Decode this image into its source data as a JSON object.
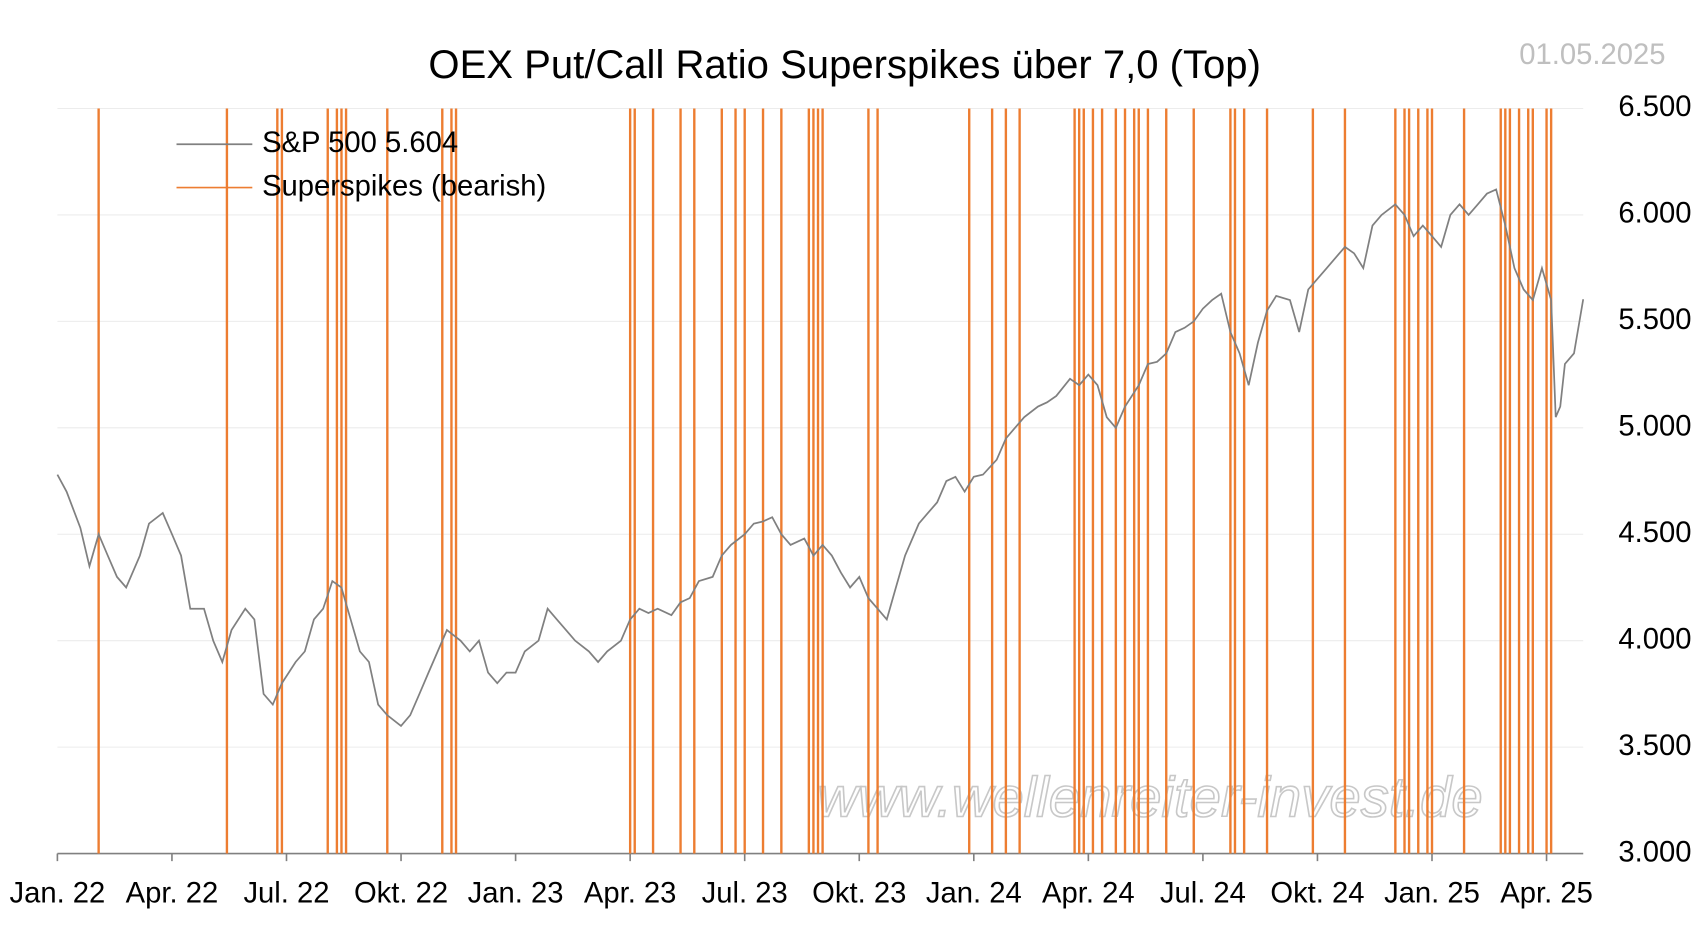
{
  "chart_data": {
    "type": "line",
    "title": "OEX Put/Call Ratio Superspikes über 7,0 (Top)",
    "date": "01.05.2025",
    "watermark": "www.wellenreiter-invest.de",
    "legend": "top-left",
    "grid": true,
    "xlim": [
      2022,
      2025.33
    ],
    "ylim": [
      3000,
      6500
    ],
    "xticks": [
      {
        "value": 2022,
        "label": "Jan. 22"
      },
      {
        "value": 2022.25,
        "label": "Apr. 22"
      },
      {
        "value": 2022.5,
        "label": "Jul. 22"
      },
      {
        "value": 2022.75,
        "label": "Okt. 22"
      },
      {
        "value": 2023,
        "label": "Jan. 23"
      },
      {
        "value": 2023.25,
        "label": "Apr. 23"
      },
      {
        "value": 2023.5,
        "label": "Jul. 23"
      },
      {
        "value": 2023.75,
        "label": "Okt. 23"
      },
      {
        "value": 2024,
        "label": "Jan. 24"
      },
      {
        "value": 2024.25,
        "label": "Apr. 24"
      },
      {
        "value": 2024.5,
        "label": "Jul. 24"
      },
      {
        "value": 2024.75,
        "label": "Okt. 24"
      },
      {
        "value": 2025,
        "label": "Jan. 25"
      },
      {
        "value": 2025.25,
        "label": "Apr. 25"
      }
    ],
    "yticks": [
      {
        "value": 3000,
        "label": "3.000"
      },
      {
        "value": 3500,
        "label": "3.500"
      },
      {
        "value": 4000,
        "label": "4.000"
      },
      {
        "value": 4500,
        "label": "4.500"
      },
      {
        "value": 5000,
        "label": "5.000"
      },
      {
        "value": 5500,
        "label": "5.500"
      },
      {
        "value": 6000,
        "label": "6.000"
      },
      {
        "value": 6500,
        "label": "6.500"
      }
    ],
    "series": [
      {
        "name": "S&P 500 5.604",
        "color": "#808080",
        "type": "line",
        "x": [
          2022.0,
          2022.02,
          2022.05,
          2022.07,
          2022.09,
          2022.11,
          2022.13,
          2022.15,
          2022.18,
          2022.2,
          2022.23,
          2022.25,
          2022.27,
          2022.29,
          2022.32,
          2022.34,
          2022.36,
          2022.38,
          2022.41,
          2022.43,
          2022.45,
          2022.47,
          2022.49,
          2022.52,
          2022.54,
          2022.56,
          2022.58,
          2022.6,
          2022.62,
          2022.64,
          2022.66,
          2022.68,
          2022.7,
          2022.72,
          2022.75,
          2022.77,
          2022.79,
          2022.81,
          2022.83,
          2022.85,
          2022.88,
          2022.9,
          2022.92,
          2022.94,
          2022.96,
          2022.98,
          2023.0,
          2023.02,
          2023.05,
          2023.07,
          2023.09,
          2023.11,
          2023.13,
          2023.16,
          2023.18,
          2023.2,
          2023.23,
          2023.25,
          2023.27,
          2023.29,
          2023.31,
          2023.34,
          2023.36,
          2023.38,
          2023.4,
          2023.43,
          2023.45,
          2023.47,
          2023.5,
          2023.52,
          2023.54,
          2023.56,
          2023.58,
          2023.6,
          2023.63,
          2023.65,
          2023.67,
          2023.69,
          2023.71,
          2023.73,
          2023.75,
          2023.77,
          2023.79,
          2023.81,
          2023.83,
          2023.85,
          2023.88,
          2023.9,
          2023.92,
          2023.94,
          2023.96,
          2023.98,
          2024.0,
          2024.02,
          2024.05,
          2024.07,
          2024.09,
          2024.11,
          2024.14,
          2024.16,
          2024.18,
          2024.21,
          2024.23,
          2024.25,
          2024.27,
          2024.29,
          2024.31,
          2024.33,
          2024.36,
          2024.38,
          2024.4,
          2024.42,
          2024.44,
          2024.46,
          2024.48,
          2024.5,
          2024.52,
          2024.54,
          2024.56,
          2024.58,
          2024.6,
          2024.62,
          2024.64,
          2024.66,
          2024.69,
          2024.71,
          2024.73,
          2024.75,
          2024.77,
          2024.79,
          2024.81,
          2024.83,
          2024.85,
          2024.87,
          2024.89,
          2024.92,
          2024.94,
          2024.96,
          2024.98,
          2025.0,
          2025.02,
          2025.04,
          2025.06,
          2025.08,
          2025.1,
          2025.12,
          2025.14,
          2025.16,
          2025.18,
          2025.2,
          2025.22,
          2025.24,
          2025.26,
          2025.27,
          2025.28,
          2025.29,
          2025.31,
          2025.33
        ],
        "values": [
          4780,
          4700,
          4530,
          4350,
          4500,
          4400,
          4300,
          4250,
          4400,
          4550,
          4600,
          4500,
          4400,
          4150,
          4150,
          4000,
          3900,
          4050,
          4150,
          4100,
          3750,
          3700,
          3800,
          3900,
          3950,
          4100,
          4150,
          4280,
          4250,
          4100,
          3950,
          3900,
          3700,
          3650,
          3600,
          3650,
          3750,
          3850,
          3950,
          4050,
          4000,
          3950,
          4000,
          3850,
          3800,
          3850,
          3850,
          3950,
          4000,
          4150,
          4100,
          4050,
          4000,
          3950,
          3900,
          3950,
          4000,
          4100,
          4150,
          4130,
          4150,
          4120,
          4180,
          4200,
          4280,
          4300,
          4400,
          4450,
          4500,
          4550,
          4560,
          4580,
          4500,
          4450,
          4480,
          4400,
          4450,
          4400,
          4320,
          4250,
          4300,
          4200,
          4150,
          4100,
          4250,
          4400,
          4550,
          4600,
          4650,
          4750,
          4770,
          4700,
          4770,
          4780,
          4850,
          4950,
          5000,
          5050,
          5100,
          5120,
          5150,
          5230,
          5200,
          5250,
          5200,
          5050,
          5000,
          5100,
          5200,
          5300,
          5310,
          5350,
          5450,
          5470,
          5500,
          5560,
          5600,
          5630,
          5450,
          5350,
          5200,
          5400,
          5550,
          5620,
          5600,
          5450,
          5650,
          5700,
          5750,
          5800,
          5850,
          5820,
          5750,
          5950,
          6000,
          6050,
          6000,
          5900,
          5950,
          5900,
          5850,
          6000,
          6050,
          6000,
          6050,
          6100,
          6120,
          5950,
          5750,
          5650,
          5600,
          5750,
          5600,
          5050,
          5100,
          5300,
          5350,
          5604
        ]
      },
      {
        "name": "Superspikes (bearish)",
        "color": "#ed7d31",
        "type": "vline",
        "x": [
          2022.09,
          2022.37,
          2022.48,
          2022.49,
          2022.59,
          2022.61,
          2022.62,
          2022.63,
          2022.72,
          2022.84,
          2022.86,
          2022.87,
          2023.25,
          2023.26,
          2023.3,
          2023.36,
          2023.39,
          2023.45,
          2023.48,
          2023.5,
          2023.54,
          2023.58,
          2023.64,
          2023.65,
          2023.66,
          2023.67,
          2023.77,
          2023.79,
          2023.99,
          2024.04,
          2024.07,
          2024.1,
          2024.22,
          2024.23,
          2024.24,
          2024.26,
          2024.28,
          2024.31,
          2024.33,
          2024.35,
          2024.36,
          2024.38,
          2024.42,
          2024.48,
          2024.56,
          2024.57,
          2024.59,
          2024.64,
          2024.74,
          2024.81,
          2024.92,
          2024.94,
          2024.95,
          2024.97,
          2024.99,
          2025.0,
          2025.07,
          2025.15,
          2025.16,
          2025.17,
          2025.19,
          2025.21,
          2025.22,
          2025.25,
          2025.26
        ]
      }
    ]
  }
}
